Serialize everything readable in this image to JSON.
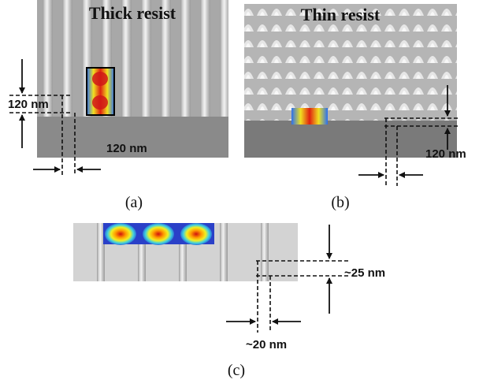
{
  "panels": [
    {
      "title": "Thick resist",
      "labels": [
        "120 nm",
        "120 nm"
      ],
      "caption": "(a)"
    },
    {
      "title": "Thin resist",
      "labels": [
        "120 nm"
      ],
      "caption": "(b)"
    },
    {
      "labels": [
        "~25 nm",
        "~20 nm"
      ],
      "caption": "(c)"
    }
  ]
}
